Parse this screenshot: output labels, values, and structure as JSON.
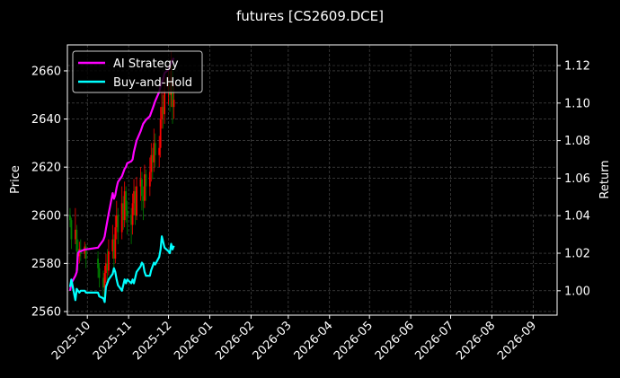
{
  "chart_data": {
    "type": "candlestick+line",
    "title": "futures [CS2609.DCE]",
    "ylabel_left": "Price",
    "ylabel_right": "Return",
    "xlim": [
      "2025-09-16",
      "2026-09-19"
    ],
    "ylim_left": [
      2558.5,
      2670.8
    ],
    "ylim_right": [
      0.987,
      1.131
    ],
    "grid": true,
    "legend_position": "top-left",
    "x_ticks": [
      "2025-10",
      "2025-11",
      "2025-12",
      "2026-01",
      "2026-02",
      "2026-03",
      "2026-04",
      "2026-05",
      "2026-06",
      "2026-07",
      "2026-08",
      "2026-09"
    ],
    "y_ticks_left": [
      2560,
      2580,
      2600,
      2620,
      2640,
      2660
    ],
    "y_ticks_right": [
      "1.00",
      "1.02",
      "1.04",
      "1.06",
      "1.08",
      "1.10",
      "1.12"
    ],
    "colors": {
      "up": "#ff0000",
      "down": "#008000",
      "ai": "#ff00ff",
      "bh": "#00ffff",
      "background": "#000000",
      "grid": "#555555"
    },
    "dates": [
      "2025-09-18",
      "2025-09-19",
      "2025-09-22",
      "2025-09-23",
      "2025-09-24",
      "2025-09-25",
      "2025-09-26",
      "2025-09-29",
      "2025-09-30",
      "2025-10-09",
      "2025-10-10",
      "2025-10-13",
      "2025-10-14",
      "2025-10-15",
      "2025-10-16",
      "2025-10-17",
      "2025-10-20",
      "2025-10-21",
      "2025-10-22",
      "2025-10-23",
      "2025-10-24",
      "2025-10-27",
      "2025-10-28",
      "2025-10-29",
      "2025-10-30",
      "2025-10-31",
      "2025-11-03",
      "2025-11-04",
      "2025-11-05",
      "2025-11-06",
      "2025-11-07",
      "2025-11-10",
      "2025-11-11",
      "2025-11-12",
      "2025-11-13",
      "2025-11-14",
      "2025-11-17",
      "2025-11-18",
      "2025-11-19",
      "2025-11-20",
      "2025-11-21",
      "2025-11-24",
      "2025-11-25",
      "2025-11-26",
      "2025-11-27",
      "2025-11-28",
      "2025-12-01",
      "2025-12-02",
      "2025-12-03",
      "2025-12-04",
      "2025-12-05"
    ],
    "ohlc": [
      [
        2600,
        2603,
        2595,
        2598
      ],
      [
        2598,
        2599,
        2586,
        2590
      ],
      [
        2590,
        2603,
        2588,
        2594
      ],
      [
        2594,
        2596,
        2580,
        2585
      ],
      [
        2585,
        2590,
        2577,
        2583
      ],
      [
        2583,
        2589,
        2580,
        2586
      ],
      [
        2586,
        2590,
        2581,
        2584
      ],
      [
        2584,
        2589,
        2582,
        2587
      ],
      [
        2587,
        2588,
        2578,
        2582
      ],
      [
        2582,
        2585,
        2574,
        2578
      ],
      [
        2578,
        2580,
        2570,
        2574
      ],
      [
        2574,
        2577,
        2565,
        2570
      ],
      [
        2570,
        2579,
        2567,
        2576
      ],
      [
        2576,
        2584,
        2572,
        2580
      ],
      [
        2580,
        2586,
        2573,
        2577
      ],
      [
        2577,
        2590,
        2575,
        2585
      ],
      [
        2585,
        2596,
        2582,
        2590
      ],
      [
        2590,
        2592,
        2578,
        2582
      ],
      [
        2582,
        2600,
        2580,
        2595
      ],
      [
        2595,
        2606,
        2590,
        2600
      ],
      [
        2600,
        2603,
        2588,
        2593
      ],
      [
        2593,
        2612,
        2590,
        2605
      ],
      [
        2605,
        2608,
        2594,
        2598
      ],
      [
        2598,
        2614,
        2595,
        2610
      ],
      [
        2610,
        2612,
        2597,
        2602
      ],
      [
        2602,
        2606,
        2592,
        2600
      ],
      [
        2600,
        2603,
        2588,
        2596
      ],
      [
        2596,
        2609,
        2592,
        2605
      ],
      [
        2605,
        2615,
        2600,
        2610
      ],
      [
        2610,
        2612,
        2596,
        2600
      ],
      [
        2600,
        2616,
        2598,
        2612
      ],
      [
        2612,
        2620,
        2606,
        2615
      ],
      [
        2615,
        2618,
        2602,
        2608
      ],
      [
        2608,
        2612,
        2598,
        2606
      ],
      [
        2606,
        2621,
        2603,
        2617
      ],
      [
        2617,
        2619,
        2606,
        2612
      ],
      [
        2612,
        2624,
        2608,
        2618
      ],
      [
        2618,
        2630,
        2614,
        2625
      ],
      [
        2625,
        2628,
        2615,
        2622
      ],
      [
        2622,
        2636,
        2618,
        2630
      ],
      [
        2630,
        2634,
        2620,
        2625
      ],
      [
        2625,
        2633,
        2620,
        2628
      ],
      [
        2628,
        2645,
        2624,
        2640
      ],
      [
        2640,
        2652,
        2636,
        2645
      ],
      [
        2645,
        2650,
        2636,
        2642
      ],
      [
        2642,
        2658,
        2638,
        2652
      ],
      [
        2652,
        2662,
        2646,
        2655
      ],
      [
        2655,
        2660,
        2643,
        2650
      ],
      [
        2650,
        2668,
        2645,
        2660
      ],
      [
        2660,
        2662,
        2638,
        2645
      ],
      [
        2645,
        2655,
        2640,
        2648
      ]
    ],
    "series": [
      {
        "name": "AI Strategy",
        "axis": "right",
        "values": [
          1.0,
          1.004,
          1.008,
          1.01,
          1.02,
          1.021,
          1.021,
          1.022,
          1.022,
          1.023,
          1.024,
          1.027,
          1.029,
          1.033,
          1.037,
          1.041,
          1.052,
          1.049,
          1.051,
          1.055,
          1.058,
          1.061,
          1.063,
          1.065,
          1.066,
          1.068,
          1.069,
          1.07,
          1.074,
          1.077,
          1.08,
          1.085,
          1.087,
          1.089,
          1.09,
          1.091,
          1.093,
          1.095,
          1.097,
          1.099,
          1.101,
          1.106,
          1.109,
          1.111,
          1.113,
          1.116,
          1.118,
          1.12,
          1.121,
          1.123,
          1.124
        ]
      },
      {
        "name": "Buy-and-Hold",
        "axis": "right",
        "values": [
          1.002,
          1.006,
          0.995,
          1.001,
          1.0,
          0.999,
          1.0,
          1.0,
          0.999,
          0.999,
          0.997,
          0.996,
          0.994,
          1.002,
          1.004,
          1.006,
          1.009,
          1.012,
          1.01,
          1.006,
          1.003,
          1.0,
          1.003,
          1.006,
          1.004,
          1.006,
          1.004,
          1.006,
          1.004,
          1.007,
          1.01,
          1.013,
          1.015,
          1.014,
          1.01,
          1.008,
          1.008,
          1.011,
          1.013,
          1.015,
          1.014,
          1.018,
          1.022,
          1.029,
          1.026,
          1.023,
          1.021,
          1.02,
          1.025,
          1.022,
          1.024
        ]
      }
    ]
  }
}
